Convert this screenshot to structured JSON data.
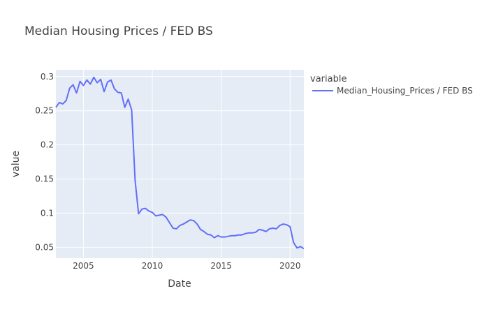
{
  "chart_data": {
    "type": "line",
    "title": "Median Housing Prices / FED BS",
    "xlabel": "Date",
    "ylabel": "value",
    "xlim": [
      2003.0,
      2021.0
    ],
    "ylim": [
      0.034,
      0.31
    ],
    "x_ticks": [
      2005,
      2010,
      2015,
      2020
    ],
    "x_tick_labels": [
      "2005",
      "2010",
      "2015",
      "2020"
    ],
    "y_ticks": [
      0.05,
      0.1,
      0.15,
      0.2,
      0.25,
      0.3
    ],
    "y_tick_labels": [
      "0.05",
      "0.1",
      "0.15",
      "0.2",
      "0.25",
      "0.3"
    ],
    "grid": true,
    "plot_bgcolor": "#E5ECF6",
    "legend": {
      "title": "variable",
      "position": "right"
    },
    "series": [
      {
        "name": "Median_Housing_Prices / FED BS",
        "color": "#636EFA",
        "x": [
          2003.0,
          2003.25,
          2003.5,
          2003.75,
          2004.0,
          2004.25,
          2004.5,
          2004.75,
          2005.0,
          2005.25,
          2005.5,
          2005.75,
          2006.0,
          2006.25,
          2006.5,
          2006.75,
          2007.0,
          2007.25,
          2007.5,
          2007.75,
          2008.0,
          2008.25,
          2008.5,
          2008.75,
          2009.0,
          2009.25,
          2009.5,
          2009.75,
          2010.0,
          2010.25,
          2010.5,
          2010.75,
          2011.0,
          2011.25,
          2011.5,
          2011.75,
          2012.0,
          2012.25,
          2012.5,
          2012.75,
          2013.0,
          2013.25,
          2013.5,
          2013.75,
          2014.0,
          2014.25,
          2014.5,
          2014.75,
          2015.0,
          2015.25,
          2015.5,
          2015.75,
          2016.0,
          2016.25,
          2016.5,
          2016.75,
          2017.0,
          2017.25,
          2017.5,
          2017.75,
          2018.0,
          2018.25,
          2018.5,
          2018.75,
          2019.0,
          2019.25,
          2019.5,
          2019.75,
          2020.0,
          2020.25,
          2020.5,
          2020.75,
          2021.0
        ],
        "y": [
          0.255,
          0.262,
          0.26,
          0.265,
          0.283,
          0.288,
          0.276,
          0.293,
          0.287,
          0.295,
          0.289,
          0.299,
          0.291,
          0.296,
          0.278,
          0.292,
          0.295,
          0.282,
          0.277,
          0.276,
          0.255,
          0.267,
          0.251,
          0.148,
          0.099,
          0.106,
          0.107,
          0.103,
          0.101,
          0.096,
          0.097,
          0.098,
          0.094,
          0.086,
          0.078,
          0.077,
          0.082,
          0.084,
          0.087,
          0.09,
          0.089,
          0.084,
          0.076,
          0.073,
          0.069,
          0.068,
          0.064,
          0.067,
          0.065,
          0.065,
          0.066,
          0.067,
          0.067,
          0.068,
          0.068,
          0.07,
          0.071,
          0.071,
          0.072,
          0.076,
          0.075,
          0.073,
          0.077,
          0.078,
          0.077,
          0.082,
          0.084,
          0.083,
          0.08,
          0.057,
          0.049,
          0.051,
          0.048
        ]
      }
    ]
  }
}
